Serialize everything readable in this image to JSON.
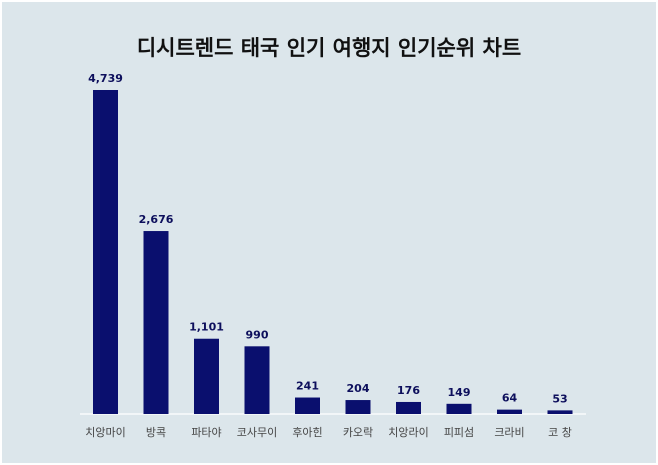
{
  "chart_data": {
    "type": "bar",
    "title": "디시트렌드 태국 인기 여행지 인기순위 차트",
    "categories": [
      "치앙마이",
      "방콕",
      "파타야",
      "코사무이",
      "후아힌",
      "카오락",
      "치앙라이",
      "피피섬",
      "크라비",
      "코 창"
    ],
    "values": [
      4739,
      2676,
      1101,
      990,
      241,
      204,
      176,
      149,
      64,
      53
    ],
    "value_labels": [
      "4,739",
      "2,676",
      "1,101",
      "990",
      "241",
      "204",
      "176",
      "149",
      "64",
      "53"
    ],
    "ylim": [
      0,
      4739
    ],
    "grid": false,
    "legend": "none",
    "bar_color": "#0a0f6e",
    "background_color": "#dce6eb"
  }
}
